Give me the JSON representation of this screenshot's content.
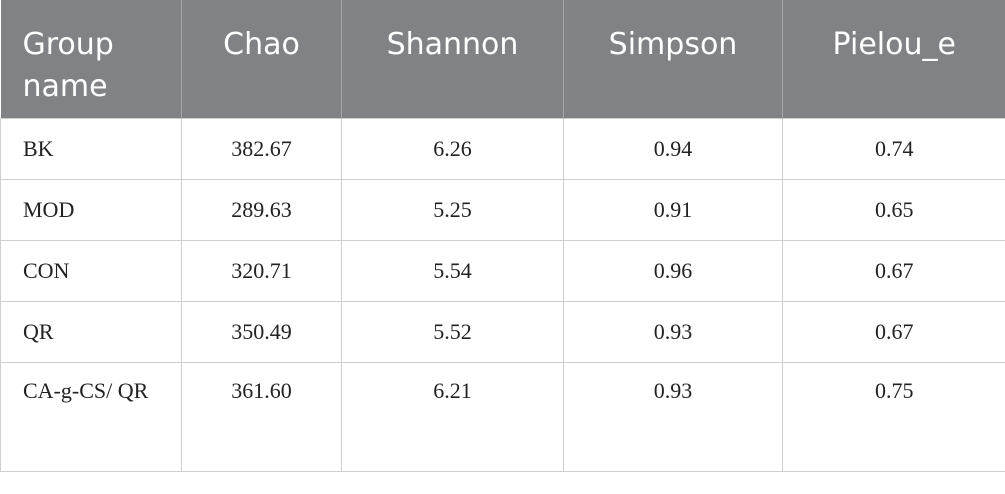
{
  "table": {
    "header": [
      "Group name",
      "Chao",
      "Shannon",
      "Simpson",
      "Pielou_e"
    ],
    "rows": [
      [
        "BK",
        "382.67",
        "6.26",
        "0.94",
        "0.74"
      ],
      [
        "MOD",
        "289.63",
        "5.25",
        "0.91",
        "0.65"
      ],
      [
        "CON",
        "320.71",
        "5.54",
        "0.96",
        "0.67"
      ],
      [
        "QR",
        "350.49",
        "5.52",
        "0.93",
        "0.67"
      ],
      [
        "CA-g-CS/ QR",
        "361.60",
        "6.21",
        "0.93",
        "0.75"
      ]
    ]
  }
}
